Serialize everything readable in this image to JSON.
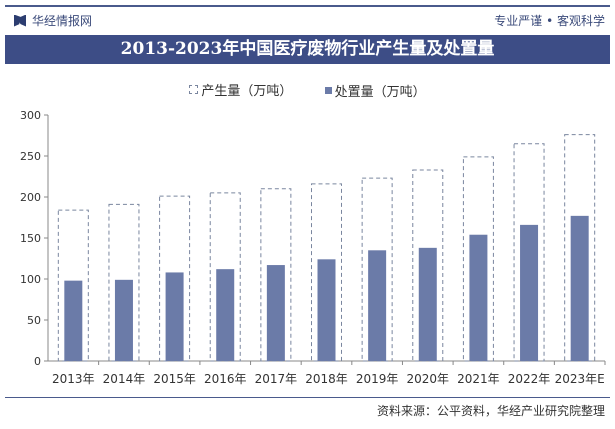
{
  "header": {
    "brand": "华经情报网",
    "slogan": "专业严谨 • 客观科学"
  },
  "footer": {
    "source": "资料来源：公平资料，华经产业研究院整理"
  },
  "colors": {
    "title_bg": "#3d4d86",
    "disposal": "#6b7ba8",
    "production_border": "#7a869f"
  },
  "chart_data": {
    "type": "bar",
    "title": "2013-2023年中国医疗废物行业产生量及处置量",
    "categories": [
      "2013年",
      "2014年",
      "2015年",
      "2016年",
      "2017年",
      "2018年",
      "2019年",
      "2020年",
      "2021年",
      "2022年",
      "2023年E"
    ],
    "series": [
      {
        "name": "产生量（万吨）",
        "values": [
          184,
          191,
          201,
          205,
          210,
          216,
          223,
          233,
          249,
          265,
          276
        ]
      },
      {
        "name": "处置量（万吨）",
        "values": [
          98,
          99,
          108,
          112,
          117,
          124,
          135,
          138,
          154,
          166,
          177
        ]
      }
    ],
    "ylim": [
      0,
      300
    ],
    "yticks": [
      "0",
      "50",
      "100",
      "150",
      "200",
      "250",
      "300"
    ],
    "legend": "top-center",
    "grid": false
  }
}
